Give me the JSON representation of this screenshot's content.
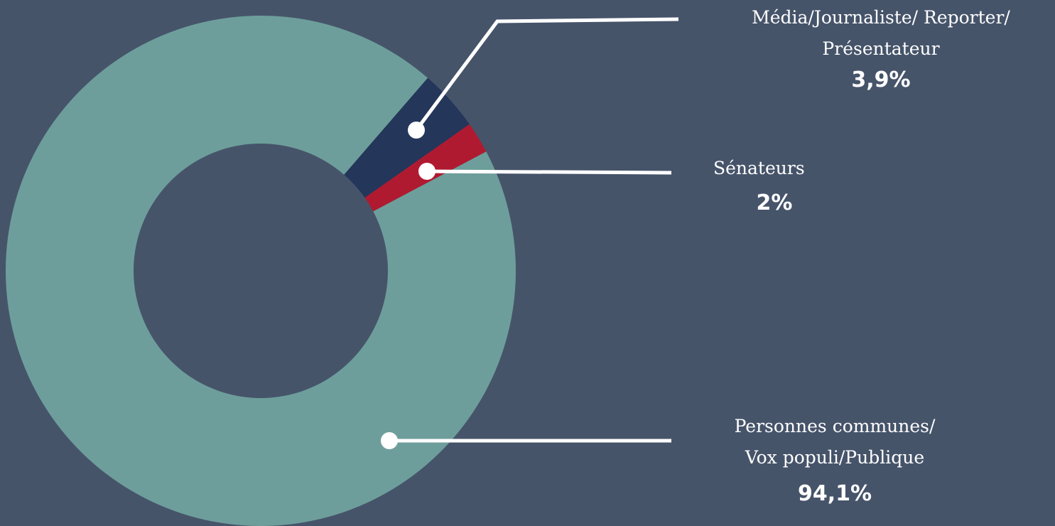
{
  "chart_data": {
    "type": "donut",
    "categories": [
      "Média/Journaliste/ Reporter/\nPrésentateur",
      "Sénateurs",
      "Personnes communes/\nVox populi/Publique"
    ],
    "values": [
      3.9,
      2,
      94.1
    ],
    "value_labels": [
      "3,9%",
      "2%",
      "94,1%"
    ],
    "colors": [
      "#24365a",
      "#b01a30",
      "#6d9e9b"
    ]
  }
}
